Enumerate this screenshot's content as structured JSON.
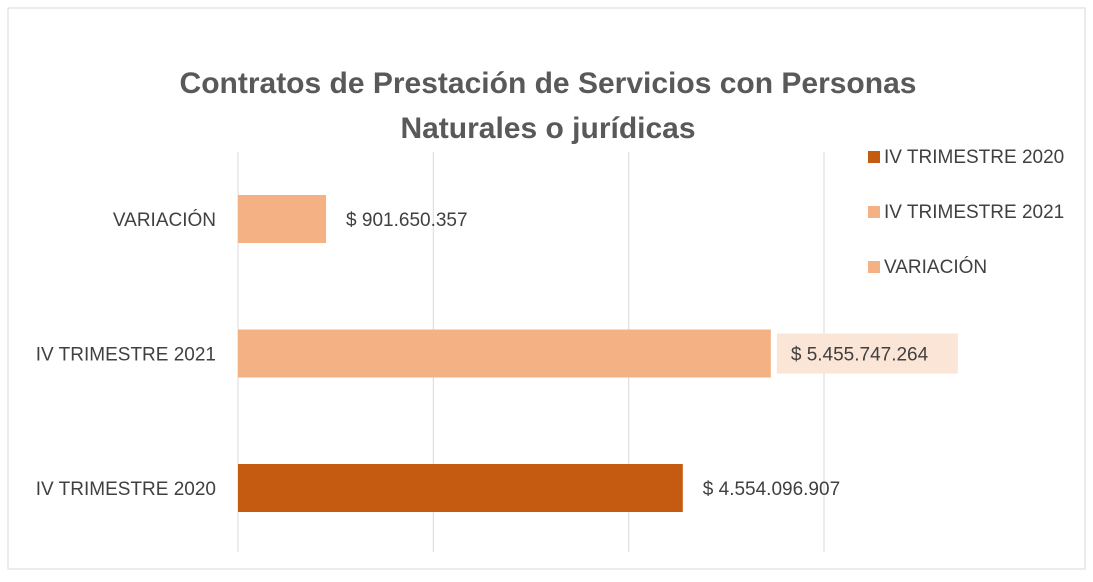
{
  "chart_data": {
    "type": "bar",
    "orientation": "horizontal",
    "title": [
      "Contratos de Prestación de Servicios con Personas",
      "Naturales o jurídicas"
    ],
    "categories": [
      "IV TRIMESTRE 2020",
      "IV TRIMESTRE 2021",
      "VARIACIÓN"
    ],
    "values": [
      4554096907,
      5455747264,
      901650357
    ],
    "value_labels": [
      "$ 4.554.096.907",
      "$ 5.455.747.264",
      "$ 901.650.357"
    ],
    "colors": [
      "#c55a11",
      "#f4b183",
      "#f4b183"
    ],
    "xlim": [
      0,
      6000000000
    ],
    "xticks": [
      0,
      2000000000,
      4000000000,
      6000000000
    ],
    "grid": true,
    "legend": "right"
  }
}
